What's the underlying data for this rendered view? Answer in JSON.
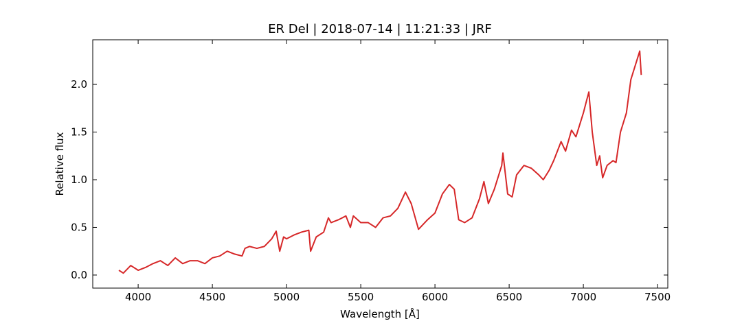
{
  "chart_data": {
    "type": "line",
    "title": "ER Del | 2018-07-14 | 11:21:33 | JRF",
    "xlabel": "Wavelength [Å]",
    "ylabel": "Relative flux",
    "x": [
      3870,
      3900,
      3950,
      4000,
      4050,
      4100,
      4150,
      4200,
      4250,
      4300,
      4350,
      4400,
      4450,
      4500,
      4550,
      4600,
      4650,
      4700,
      4720,
      4750,
      4800,
      4850,
      4900,
      4930,
      4954,
      4980,
      5000,
      5050,
      5100,
      5150,
      5162,
      5200,
      5250,
      5282,
      5300,
      5350,
      5400,
      5430,
      5450,
      5500,
      5550,
      5600,
      5650,
      5700,
      5750,
      5801,
      5840,
      5889,
      5950,
      6000,
      6050,
      6097,
      6130,
      6160,
      6200,
      6250,
      6300,
      6330,
      6360,
      6400,
      6450,
      6458,
      6490,
      6520,
      6550,
      6600,
      6650,
      6700,
      6730,
      6770,
      6800,
      6850,
      6880,
      6920,
      6950,
      7000,
      7020,
      7037,
      7060,
      7090,
      7110,
      7130,
      7160,
      7200,
      7220,
      7250,
      7290,
      7320,
      7360,
      7380,
      7390
    ],
    "series": [
      {
        "name": "ER Del",
        "color": "#d62728",
        "values": [
          0.05,
          0.02,
          0.1,
          0.05,
          0.08,
          0.12,
          0.15,
          0.1,
          0.18,
          0.12,
          0.15,
          0.15,
          0.12,
          0.18,
          0.2,
          0.25,
          0.22,
          0.2,
          0.28,
          0.3,
          0.28,
          0.3,
          0.38,
          0.46,
          0.25,
          0.4,
          0.38,
          0.42,
          0.45,
          0.47,
          0.25,
          0.4,
          0.45,
          0.6,
          0.55,
          0.58,
          0.62,
          0.5,
          0.62,
          0.55,
          0.55,
          0.5,
          0.6,
          0.62,
          0.7,
          0.87,
          0.75,
          0.48,
          0.58,
          0.65,
          0.85,
          0.95,
          0.9,
          0.58,
          0.55,
          0.6,
          0.8,
          0.98,
          0.75,
          0.9,
          1.15,
          1.28,
          0.85,
          0.82,
          1.05,
          1.15,
          1.12,
          1.05,
          1.0,
          1.1,
          1.2,
          1.4,
          1.3,
          1.52,
          1.45,
          1.7,
          1.82,
          1.92,
          1.5,
          1.15,
          1.25,
          1.02,
          1.15,
          1.2,
          1.18,
          1.5,
          1.7,
          2.05,
          2.25,
          2.35,
          2.1
        ]
      }
    ],
    "xlim": [
      3694,
      7569
    ],
    "xticks": [
      4000,
      4500,
      5000,
      5500,
      6000,
      6500,
      7000,
      7500
    ],
    "ylim": [
      -0.137,
      2.468
    ],
    "yticks": [
      0.0,
      0.5,
      1.0,
      1.5,
      2.0
    ],
    "ytick_labels": [
      "0.0",
      "0.5",
      "1.0",
      "1.5",
      "2.0"
    ]
  }
}
